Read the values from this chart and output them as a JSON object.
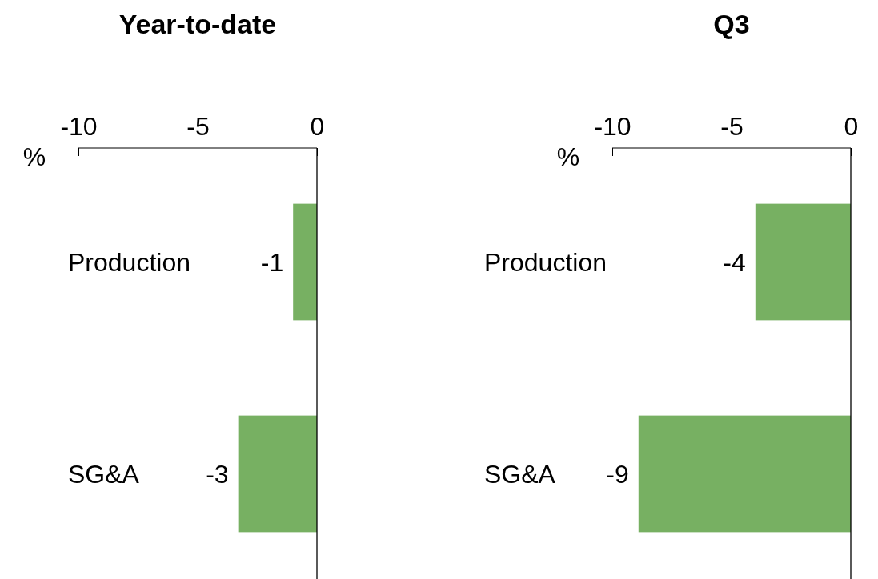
{
  "chart_data": [
    {
      "type": "bar",
      "orientation": "horizontal",
      "title": "Year-to-date",
      "xlabel": "%",
      "categories": [
        "Production",
        "SG&A"
      ],
      "values": [
        -1,
        -3.3
      ],
      "value_labels": [
        "-1",
        "-3"
      ],
      "color": "#77b062",
      "xlim": [
        -10,
        0
      ],
      "xticks": [
        -10,
        -5,
        0
      ]
    },
    {
      "type": "bar",
      "orientation": "horizontal",
      "title": "Q3",
      "xlabel": "%",
      "categories": [
        "Production",
        "SG&A"
      ],
      "values": [
        -4,
        -8.9
      ],
      "value_labels": [
        "-4",
        "-9"
      ],
      "color": "#77b062",
      "xlim": [
        -10,
        0
      ],
      "xticks": [
        -10,
        -5,
        0
      ]
    }
  ]
}
